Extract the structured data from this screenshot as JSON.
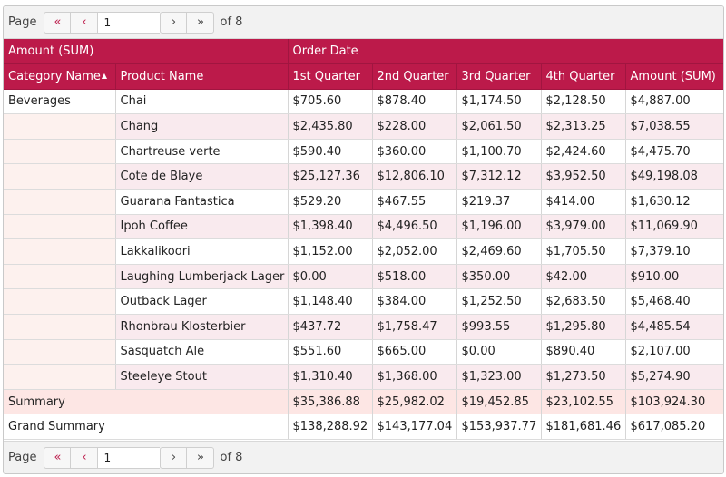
{
  "pager": {
    "page_label": "Page",
    "page_value": "1",
    "of_label": "of 8",
    "first_icon": "«",
    "prev_icon": "‹",
    "next_icon": "›",
    "last_icon": "»"
  },
  "headers": {
    "data_field": "Amount (SUM)",
    "column_field": "Order Date",
    "category_name": "Category Name",
    "product_name": "Product Name",
    "sort_icon": "▲",
    "quarters": [
      "1st Quarter",
      "2nd Quarter",
      "3rd Quarter",
      "4th Quarter",
      "Amount (SUM)"
    ]
  },
  "category": "Beverages",
  "rows": [
    {
      "product": "Chai",
      "q1": "$705.60",
      "q2": "$878.40",
      "q3": "$1,174.50",
      "q4": "$2,128.50",
      "total": "$4,887.00"
    },
    {
      "product": "Chang",
      "q1": "$2,435.80",
      "q2": "$228.00",
      "q3": "$2,061.50",
      "q4": "$2,313.25",
      "total": "$7,038.55"
    },
    {
      "product": "Chartreuse verte",
      "q1": "$590.40",
      "q2": "$360.00",
      "q3": "$1,100.70",
      "q4": "$2,424.60",
      "total": "$4,475.70"
    },
    {
      "product": "Cote de Blaye",
      "q1": "$25,127.36",
      "q2": "$12,806.10",
      "q3": "$7,312.12",
      "q4": "$3,952.50",
      "total": "$49,198.08"
    },
    {
      "product": "Guarana Fantastica",
      "q1": "$529.20",
      "q2": "$467.55",
      "q3": "$219.37",
      "q4": "$414.00",
      "total": "$1,630.12"
    },
    {
      "product": "Ipoh Coffee",
      "q1": "$1,398.40",
      "q2": "$4,496.50",
      "q3": "$1,196.00",
      "q4": "$3,979.00",
      "total": "$11,069.90"
    },
    {
      "product": "Lakkalikoori",
      "q1": "$1,152.00",
      "q2": "$2,052.00",
      "q3": "$2,469.60",
      "q4": "$1,705.50",
      "total": "$7,379.10"
    },
    {
      "product": "Laughing Lumberjack Lager",
      "q1": "$0.00",
      "q2": "$518.00",
      "q3": "$350.00",
      "q4": "$42.00",
      "total": "$910.00"
    },
    {
      "product": "Outback Lager",
      "q1": "$1,148.40",
      "q2": "$384.00",
      "q3": "$1,252.50",
      "q4": "$2,683.50",
      "total": "$5,468.40"
    },
    {
      "product": "Rhonbrau Klosterbier",
      "q1": "$437.72",
      "q2": "$1,758.47",
      "q3": "$993.55",
      "q4": "$1,295.80",
      "total": "$4,485.54"
    },
    {
      "product": "Sasquatch Ale",
      "q1": "$551.60",
      "q2": "$665.00",
      "q3": "$0.00",
      "q4": "$890.40",
      "total": "$2,107.00"
    },
    {
      "product": "Steeleye Stout",
      "q1": "$1,310.40",
      "q2": "$1,368.00",
      "q3": "$1,323.00",
      "q4": "$1,273.50",
      "total": "$5,274.90"
    }
  ],
  "summary": {
    "label": "Summary",
    "q1": "$35,386.88",
    "q2": "$25,982.02",
    "q3": "$19,452.85",
    "q4": "$23,102.55",
    "total": "$103,924.30"
  },
  "grand": {
    "label": "Grand Summary",
    "q1": "$138,288.92",
    "q2": "$143,177.04",
    "q3": "$153,937.77",
    "q4": "$181,681.46",
    "total": "$617,085.20"
  },
  "colors": {
    "accent": "#bc1a4a",
    "alt_row": "#f9eaee",
    "category_cell": "#fdf1ee",
    "summary_row": "#fde6e4"
  }
}
